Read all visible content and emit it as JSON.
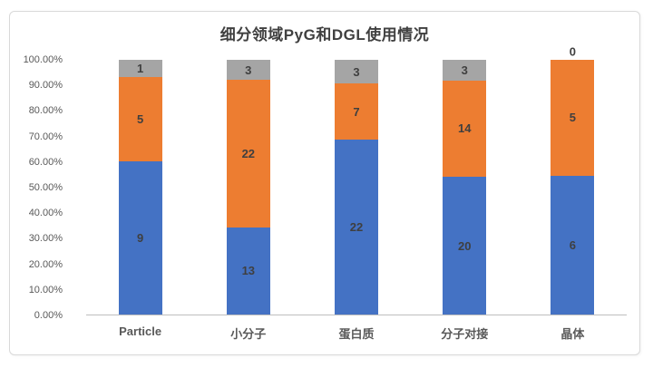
{
  "title": "细分领域PyG和DGL使用情况",
  "chart_data": {
    "type": "bar",
    "subtype": "stacked-100-percent-column",
    "title": "细分领域PyG和DGL使用情况",
    "categories": [
      "Particle",
      "小分子",
      "蛋白质",
      "分子对接",
      "晶体"
    ],
    "series": [
      {
        "name": "blue",
        "color": "#4472C4",
        "values": [
          9,
          13,
          22,
          20,
          6
        ]
      },
      {
        "name": "orange",
        "color": "#ED7D31",
        "values": [
          5,
          22,
          7,
          14,
          5
        ]
      },
      {
        "name": "gray",
        "color": "#A5A5A5",
        "values": [
          1,
          3,
          3,
          3,
          0
        ]
      }
    ],
    "data_labels_shown": true,
    "y_axis": {
      "ticks": [
        "100.00%",
        "90.00%",
        "80.00%",
        "70.00%",
        "60.00%",
        "50.00%",
        "40.00%",
        "30.00%",
        "20.00%",
        "10.00%",
        "0.00%"
      ],
      "range_percent": [
        0,
        100
      ]
    },
    "xlabel": "",
    "ylabel": "",
    "grid": false,
    "legend": "none",
    "colors": {
      "title_text": "#404040",
      "axis_text": "#595959",
      "data_label_text": "#3F3F3F",
      "axis_line": "#BFBFBF",
      "card_border": "#D9D9D9",
      "background": "#FFFFFF"
    }
  }
}
